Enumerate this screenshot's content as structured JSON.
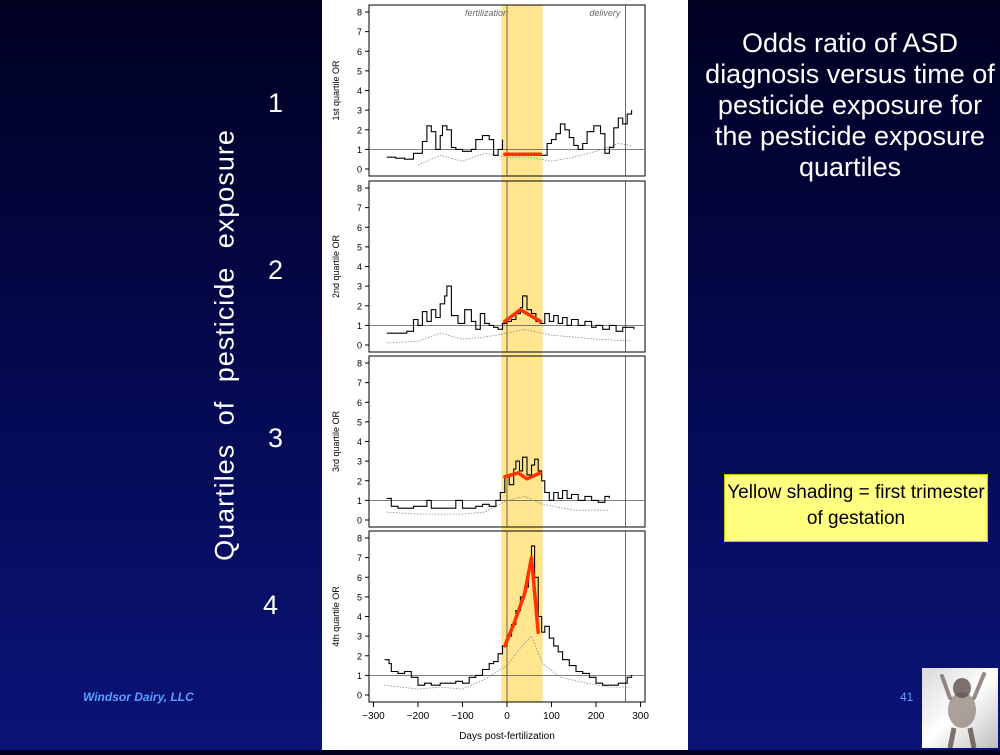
{
  "slide": {
    "title": "Odds ratio of ASD diagnosis versus time of pesticide exposure for the pesticide exposure quartiles",
    "vertical_label": "Quartiles  of  pesticide  exposure",
    "quartile_numbers": [
      "1",
      "2",
      "3",
      "4"
    ],
    "note": "Yellow shading = first trimester of gestation",
    "footer": "Windsor Dairy, LLC",
    "page_number": "41"
  },
  "colors": {
    "background": "#050a55",
    "shading": "#ffe27a",
    "or_line": "#000000",
    "ci_line": "#888888",
    "highlight": "#ff3300",
    "note_bg": "#ffff80"
  },
  "chart_data": {
    "type": "line",
    "xlabel": "Days post-fertilization",
    "xlim": [
      -310,
      310
    ],
    "xticks": [
      -300,
      -200,
      -100,
      0,
      100,
      200,
      300
    ],
    "ylim": [
      0,
      8
    ],
    "yticks": [
      0,
      1,
      2,
      3,
      4,
      5,
      6,
      7,
      8
    ],
    "reference_line_y": 1,
    "shaded_x_range": [
      -13,
      80
    ],
    "vertical_markers": [
      {
        "x": 0,
        "label": "fertilization"
      },
      {
        "x": 266,
        "label": "delivery"
      }
    ],
    "panels": [
      {
        "ylabel": "1st quartile OR",
        "or": [
          [
            -270,
            0.6
          ],
          [
            -250,
            0.55
          ],
          [
            -230,
            0.5
          ],
          [
            -210,
            0.8
          ],
          [
            -200,
            0.8
          ],
          [
            -190,
            1.4
          ],
          [
            -180,
            2.2
          ],
          [
            -170,
            1.9
          ],
          [
            -160,
            1.0
          ],
          [
            -150,
            1.7
          ],
          [
            -145,
            2.2
          ],
          [
            -135,
            2.0
          ],
          [
            -125,
            1.1
          ],
          [
            -115,
            1.0
          ],
          [
            -100,
            0.9
          ],
          [
            -80,
            1.0
          ],
          [
            -70,
            1.5
          ],
          [
            -55,
            1.7
          ],
          [
            -40,
            1.5
          ],
          [
            -30,
            0.7
          ],
          [
            -20,
            1.0
          ],
          [
            -10,
            1.5
          ]
        ],
        "or_after": [
          [
            75,
            0.7
          ],
          [
            90,
            1.3
          ],
          [
            100,
            1.5
          ],
          [
            110,
            1.8
          ],
          [
            120,
            2.3
          ],
          [
            130,
            2.0
          ],
          [
            140,
            1.6
          ],
          [
            150,
            1.2
          ],
          [
            160,
            1.0
          ],
          [
            170,
            1.3
          ],
          [
            180,
            1.9
          ],
          [
            195,
            2.2
          ],
          [
            210,
            1.8
          ],
          [
            220,
            0.8
          ],
          [
            230,
            1.1
          ],
          [
            240,
            2.1
          ],
          [
            250,
            2.6
          ],
          [
            260,
            2.3
          ],
          [
            270,
            2.8
          ],
          [
            280,
            3.0
          ]
        ],
        "ci_lower": [
          [
            -200,
            0.2
          ],
          [
            -150,
            0.7
          ],
          [
            -100,
            0.4
          ],
          [
            -50,
            0.8
          ],
          [
            0,
            0.6
          ],
          [
            50,
            0.6
          ],
          [
            100,
            0.4
          ],
          [
            150,
            0.6
          ],
          [
            200,
            0.9
          ],
          [
            250,
            1.3
          ],
          [
            280,
            1.2
          ]
        ],
        "trend": [
          [
            -5,
            0.75
          ],
          [
            75,
            0.75
          ]
        ]
      },
      {
        "ylabel": "2nd quartile OR",
        "or": [
          [
            -270,
            0.6
          ],
          [
            -250,
            0.6
          ],
          [
            -225,
            0.7
          ],
          [
            -210,
            1.3
          ],
          [
            -200,
            1.0
          ],
          [
            -190,
            1.7
          ],
          [
            -180,
            1.2
          ],
          [
            -170,
            1.8
          ],
          [
            -160,
            1.4
          ],
          [
            -150,
            2.1
          ],
          [
            -140,
            2.5
          ],
          [
            -135,
            3.0
          ],
          [
            -125,
            1.5
          ],
          [
            -110,
            1.1
          ],
          [
            -95,
            1.8
          ],
          [
            -80,
            1.2
          ],
          [
            -70,
            0.8
          ],
          [
            -60,
            1.6
          ],
          [
            -50,
            1.1
          ],
          [
            -40,
            1.0
          ],
          [
            -30,
            0.9
          ],
          [
            -20,
            0.8
          ],
          [
            -10,
            1.1
          ],
          [
            0,
            1.2
          ],
          [
            10,
            1.3
          ],
          [
            20,
            1.6
          ],
          [
            30,
            1.9
          ],
          [
            35,
            2.5
          ],
          [
            45,
            1.8
          ],
          [
            55,
            1.6
          ],
          [
            65,
            1.2
          ],
          [
            75,
            1.1
          ],
          [
            85,
            1.6
          ],
          [
            95,
            1.2
          ],
          [
            105,
            1.5
          ],
          [
            115,
            1.1
          ],
          [
            125,
            1.4
          ],
          [
            135,
            1.0
          ],
          [
            145,
            1.3
          ],
          [
            160,
            1.0
          ],
          [
            175,
            1.2
          ],
          [
            190,
            0.9
          ],
          [
            200,
            1.0
          ],
          [
            215,
            0.8
          ],
          [
            230,
            1.0
          ],
          [
            245,
            0.7
          ],
          [
            260,
            0.9
          ],
          [
            275,
            0.9
          ],
          [
            285,
            0.8
          ]
        ],
        "ci_lower": [
          [
            -270,
            0.1
          ],
          [
            -200,
            0.2
          ],
          [
            -150,
            0.6
          ],
          [
            -100,
            0.3
          ],
          [
            -50,
            0.4
          ],
          [
            0,
            0.6
          ],
          [
            40,
            0.8
          ],
          [
            100,
            0.5
          ],
          [
            150,
            0.4
          ],
          [
            200,
            0.3
          ],
          [
            280,
            0.2
          ]
        ],
        "trend": [
          [
            -5,
            1.2
          ],
          [
            30,
            1.8
          ],
          [
            75,
            1.2
          ]
        ]
      },
      {
        "ylabel": "3rd quartile OR",
        "or": [
          [
            -270,
            1.1
          ],
          [
            -260,
            0.7
          ],
          [
            -245,
            0.6
          ],
          [
            -230,
            0.6
          ],
          [
            -210,
            0.7
          ],
          [
            -195,
            0.7
          ],
          [
            -180,
            1.0
          ],
          [
            -170,
            0.6
          ],
          [
            -150,
            0.6
          ],
          [
            -130,
            0.6
          ],
          [
            -115,
            1.0
          ],
          [
            -100,
            0.6
          ],
          [
            -85,
            0.6
          ],
          [
            -70,
            0.7
          ],
          [
            -55,
            0.8
          ],
          [
            -40,
            0.7
          ],
          [
            -25,
            1.0
          ],
          [
            -15,
            1.4
          ],
          [
            -5,
            2.2
          ],
          [
            5,
            1.8
          ],
          [
            15,
            2.6
          ],
          [
            20,
            3.0
          ],
          [
            28,
            2.5
          ],
          [
            35,
            3.2
          ],
          [
            45,
            2.3
          ],
          [
            55,
            2.8
          ],
          [
            62,
            3.1
          ],
          [
            70,
            2.5
          ],
          [
            78,
            2.0
          ],
          [
            85,
            1.4
          ],
          [
            95,
            1.0
          ],
          [
            105,
            1.4
          ],
          [
            115,
            1.1
          ],
          [
            125,
            1.5
          ],
          [
            135,
            1.1
          ],
          [
            145,
            1.3
          ],
          [
            160,
            1.0
          ],
          [
            175,
            1.2
          ],
          [
            190,
            1.0
          ],
          [
            205,
            0.9
          ],
          [
            220,
            1.2
          ],
          [
            230,
            1.1
          ]
        ],
        "ci_lower": [
          [
            -270,
            0.4
          ],
          [
            -200,
            0.3
          ],
          [
            -150,
            0.3
          ],
          [
            -100,
            0.3
          ],
          [
            -50,
            0.4
          ],
          [
            0,
            1.0
          ],
          [
            40,
            1.2
          ],
          [
            80,
            0.8
          ],
          [
            150,
            0.5
          ],
          [
            230,
            0.5
          ]
        ],
        "trend": [
          [
            -5,
            2.2
          ],
          [
            25,
            2.4
          ],
          [
            45,
            2.1
          ],
          [
            75,
            2.4
          ]
        ]
      },
      {
        "ylabel": "4th quartile OR",
        "or": [
          [
            -275,
            1.8
          ],
          [
            -265,
            1.6
          ],
          [
            -260,
            1.2
          ],
          [
            -245,
            1.1
          ],
          [
            -230,
            1.2
          ],
          [
            -215,
            0.9
          ],
          [
            -200,
            0.5
          ],
          [
            -185,
            0.6
          ],
          [
            -170,
            0.5
          ],
          [
            -150,
            0.6
          ],
          [
            -130,
            0.6
          ],
          [
            -115,
            0.7
          ],
          [
            -100,
            0.6
          ],
          [
            -85,
            0.9
          ],
          [
            -70,
            1.0
          ],
          [
            -55,
            1.3
          ],
          [
            -40,
            1.6
          ],
          [
            -30,
            1.7
          ],
          [
            -20,
            2.1
          ],
          [
            -10,
            2.5
          ],
          [
            0,
            3.0
          ],
          [
            10,
            3.6
          ],
          [
            20,
            4.3
          ],
          [
            30,
            5.0
          ],
          [
            40,
            5.5
          ],
          [
            48,
            6.4
          ],
          [
            55,
            7.6
          ],
          [
            62,
            6.0
          ],
          [
            70,
            4.0
          ],
          [
            78,
            3.2
          ],
          [
            85,
            3.5
          ],
          [
            95,
            2.9
          ],
          [
            105,
            2.5
          ],
          [
            115,
            2.2
          ],
          [
            125,
            1.8
          ],
          [
            140,
            1.5
          ],
          [
            155,
            1.2
          ],
          [
            170,
            1.1
          ],
          [
            185,
            0.9
          ],
          [
            200,
            0.6
          ],
          [
            215,
            0.5
          ],
          [
            230,
            0.5
          ],
          [
            250,
            0.6
          ],
          [
            270,
            0.9
          ],
          [
            280,
            1.0
          ]
        ],
        "ci_lower": [
          [
            -275,
            0.5
          ],
          [
            -200,
            0.3
          ],
          [
            -150,
            0.4
          ],
          [
            -100,
            0.3
          ],
          [
            -50,
            0.8
          ],
          [
            0,
            1.5
          ],
          [
            30,
            2.4
          ],
          [
            55,
            3.0
          ],
          [
            80,
            1.6
          ],
          [
            120,
            0.9
          ],
          [
            180,
            0.6
          ],
          [
            230,
            0.4
          ],
          [
            280,
            0.4
          ]
        ],
        "trend": [
          [
            -5,
            2.5
          ],
          [
            15,
            3.6
          ],
          [
            40,
            5.2
          ],
          [
            55,
            7.0
          ],
          [
            70,
            3.2
          ]
        ]
      }
    ]
  }
}
